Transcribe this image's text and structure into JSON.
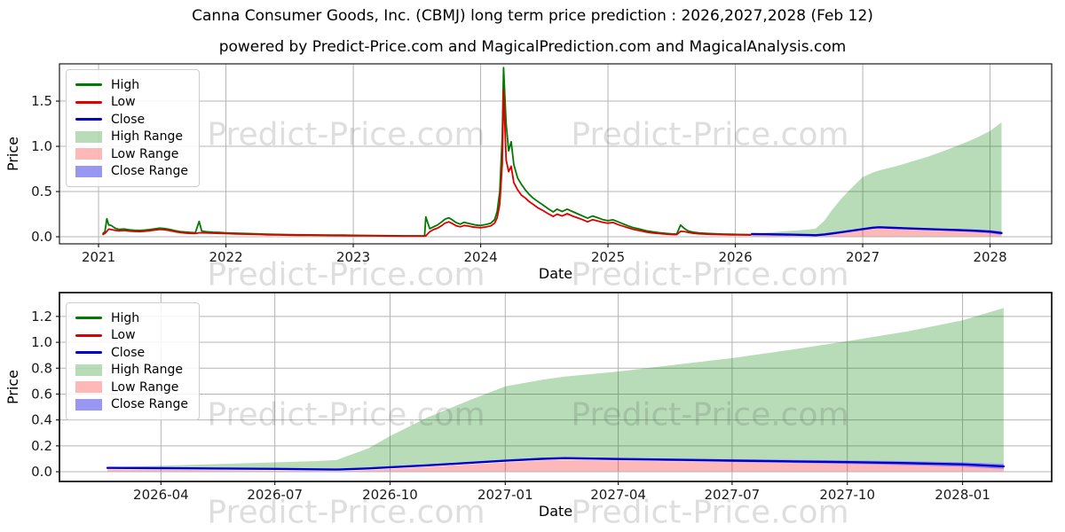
{
  "page": {
    "title": "Canna Consumer Goods, Inc. (CBMJ) long term price prediction : 2026,2027,2028 (Feb 12)",
    "subtitle": "powered by Predict-Price.com and MagicalPrediction.com and MagicalAnalysis.com"
  },
  "watermark": {
    "text": "Predict-Price.com"
  },
  "colors": {
    "high": "#007a00",
    "low": "#dd0000",
    "close": "#0000cd",
    "high_range": "rgba(0,128,0,0.28)",
    "low_range": "rgba(255,0,0,0.28)",
    "close_range": "rgba(50,50,230,0.5)",
    "grid": "#b4b4b4",
    "spine": "#1a1a1a",
    "tick_text": "#1a1a1a"
  },
  "chart_data": {
    "type": "line",
    "title": "Canna Consumer Goods, Inc. (CBMJ) long term price prediction : 2026,2027,2028 (Feb 12)",
    "legend_position": "upper left",
    "grid": true,
    "legend": [
      {
        "label": "High",
        "type": "line",
        "color": "high"
      },
      {
        "label": "Low",
        "type": "line",
        "color": "low"
      },
      {
        "label": "Close",
        "type": "line",
        "color": "close"
      },
      {
        "label": "High Range",
        "type": "patch",
        "color": "high_range"
      },
      {
        "label": "Low Range",
        "type": "patch",
        "color": "low_range"
      },
      {
        "label": "Close Range",
        "type": "patch",
        "color": "close_range"
      }
    ],
    "historical": {
      "columns": [
        "year",
        "high",
        "low"
      ],
      "points": [
        [
          2021.035,
          0.038,
          0.026
        ],
        [
          2021.05,
          0.055,
          0.038
        ],
        [
          2021.065,
          0.2,
          0.06
        ],
        [
          2021.08,
          0.13,
          0.085
        ],
        [
          2021.1,
          0.125,
          0.08
        ],
        [
          2021.13,
          0.095,
          0.072
        ],
        [
          2021.16,
          0.082,
          0.065
        ],
        [
          2021.2,
          0.086,
          0.07
        ],
        [
          2021.24,
          0.078,
          0.063
        ],
        [
          2021.28,
          0.072,
          0.059
        ],
        [
          2021.32,
          0.07,
          0.057
        ],
        [
          2021.36,
          0.074,
          0.061
        ],
        [
          2021.4,
          0.08,
          0.067
        ],
        [
          2021.44,
          0.088,
          0.074
        ],
        [
          2021.48,
          0.096,
          0.082
        ],
        [
          2021.52,
          0.091,
          0.078
        ],
        [
          2021.56,
          0.081,
          0.068
        ],
        [
          2021.6,
          0.068,
          0.056
        ],
        [
          2021.64,
          0.058,
          0.047
        ],
        [
          2021.68,
          0.052,
          0.042
        ],
        [
          2021.72,
          0.048,
          0.038
        ],
        [
          2021.76,
          0.045,
          0.036
        ],
        [
          2021.79,
          0.17,
          0.045
        ],
        [
          2021.81,
          0.062,
          0.044
        ],
        [
          2021.85,
          0.055,
          0.043
        ],
        [
          2021.9,
          0.05,
          0.04
        ],
        [
          2021.95,
          0.047,
          0.038
        ],
        [
          2022.0,
          0.044,
          0.036
        ],
        [
          2022.08,
          0.04,
          0.032
        ],
        [
          2022.17,
          0.036,
          0.029
        ],
        [
          2022.25,
          0.032,
          0.026
        ],
        [
          2022.33,
          0.028,
          0.022
        ],
        [
          2022.42,
          0.026,
          0.02
        ],
        [
          2022.5,
          0.024,
          0.018
        ],
        [
          2022.58,
          0.022,
          0.017
        ],
        [
          2022.67,
          0.021,
          0.016
        ],
        [
          2022.75,
          0.02,
          0.015
        ],
        [
          2022.83,
          0.019,
          0.014
        ],
        [
          2022.92,
          0.018,
          0.013
        ],
        [
          2023.0,
          0.016,
          0.012
        ],
        [
          2023.08,
          0.015,
          0.011
        ],
        [
          2023.17,
          0.014,
          0.01
        ],
        [
          2023.25,
          0.012,
          0.009
        ],
        [
          2023.33,
          0.011,
          0.008
        ],
        [
          2023.42,
          0.01,
          0.007
        ],
        [
          2023.5,
          0.01,
          0.007
        ],
        [
          2023.56,
          0.01,
          0.007
        ],
        [
          2023.57,
          0.22,
          0.01
        ],
        [
          2023.6,
          0.09,
          0.055
        ],
        [
          2023.63,
          0.11,
          0.08
        ],
        [
          2023.66,
          0.13,
          0.095
        ],
        [
          2023.69,
          0.16,
          0.12
        ],
        [
          2023.72,
          0.195,
          0.15
        ],
        [
          2023.75,
          0.21,
          0.165
        ],
        [
          2023.78,
          0.185,
          0.145
        ],
        [
          2023.81,
          0.155,
          0.12
        ],
        [
          2023.84,
          0.14,
          0.11
        ],
        [
          2023.87,
          0.16,
          0.125
        ],
        [
          2023.9,
          0.15,
          0.12
        ],
        [
          2023.93,
          0.14,
          0.11
        ],
        [
          2023.96,
          0.13,
          0.105
        ],
        [
          2024.0,
          0.125,
          0.1
        ],
        [
          2024.04,
          0.135,
          0.108
        ],
        [
          2024.08,
          0.15,
          0.12
        ],
        [
          2024.11,
          0.19,
          0.15
        ],
        [
          2024.13,
          0.28,
          0.21
        ],
        [
          2024.15,
          0.5,
          0.36
        ],
        [
          2024.17,
          1.1,
          0.8
        ],
        [
          2024.18,
          1.87,
          1.62
        ],
        [
          2024.2,
          1.25,
          0.85
        ],
        [
          2024.22,
          0.95,
          0.72
        ],
        [
          2024.24,
          1.05,
          0.78
        ],
        [
          2024.26,
          0.8,
          0.6
        ],
        [
          2024.29,
          0.65,
          0.52
        ],
        [
          2024.32,
          0.58,
          0.46
        ],
        [
          2024.35,
          0.52,
          0.43
        ],
        [
          2024.38,
          0.47,
          0.39
        ],
        [
          2024.41,
          0.43,
          0.36
        ],
        [
          2024.45,
          0.39,
          0.32
        ],
        [
          2024.49,
          0.35,
          0.29
        ],
        [
          2024.53,
          0.31,
          0.255
        ],
        [
          2024.57,
          0.275,
          0.225
        ],
        [
          2024.6,
          0.305,
          0.25
        ],
        [
          2024.64,
          0.28,
          0.23
        ],
        [
          2024.68,
          0.305,
          0.255
        ],
        [
          2024.72,
          0.28,
          0.23
        ],
        [
          2024.76,
          0.255,
          0.21
        ],
        [
          2024.8,
          0.23,
          0.19
        ],
        [
          2024.84,
          0.205,
          0.165
        ],
        [
          2024.88,
          0.23,
          0.19
        ],
        [
          2024.92,
          0.21,
          0.175
        ],
        [
          2024.96,
          0.19,
          0.16
        ],
        [
          2025.0,
          0.178,
          0.15
        ],
        [
          2025.04,
          0.188,
          0.158
        ],
        [
          2025.08,
          0.165,
          0.135
        ],
        [
          2025.12,
          0.142,
          0.116
        ],
        [
          2025.16,
          0.12,
          0.098
        ],
        [
          2025.2,
          0.1,
          0.082
        ],
        [
          2025.25,
          0.085,
          0.068
        ],
        [
          2025.3,
          0.066,
          0.052
        ],
        [
          2025.35,
          0.055,
          0.043
        ],
        [
          2025.4,
          0.046,
          0.036
        ],
        [
          2025.45,
          0.038,
          0.03
        ],
        [
          2025.5,
          0.032,
          0.025
        ],
        [
          2025.54,
          0.03,
          0.024
        ],
        [
          2025.57,
          0.13,
          0.06
        ],
        [
          2025.6,
          0.092,
          0.058
        ],
        [
          2025.63,
          0.064,
          0.048
        ],
        [
          2025.67,
          0.05,
          0.039
        ],
        [
          2025.72,
          0.042,
          0.033
        ],
        [
          2025.78,
          0.037,
          0.029
        ],
        [
          2025.84,
          0.033,
          0.026
        ],
        [
          2025.9,
          0.03,
          0.024
        ],
        [
          2025.96,
          0.028,
          0.022
        ],
        [
          2026.02,
          0.026,
          0.021
        ],
        [
          2026.08,
          0.025,
          0.02
        ],
        [
          2026.12,
          0.024,
          0.019
        ]
      ]
    },
    "prediction": {
      "columns": [
        "year",
        "close",
        "close_band_halfwidth",
        "high_range_upper",
        "low_range_upper"
      ],
      "low_range_lower": 0.004,
      "points": [
        [
          2026.13,
          0.03,
          0.002,
          0.033,
          0.018
        ],
        [
          2026.25,
          0.028,
          0.002,
          0.046,
          0.016
        ],
        [
          2026.38,
          0.025,
          0.003,
          0.06,
          0.013
        ],
        [
          2026.5,
          0.022,
          0.003,
          0.073,
          0.01
        ],
        [
          2026.58,
          0.019,
          0.003,
          0.082,
          0.007
        ],
        [
          2026.63,
          0.017,
          0.004,
          0.09,
          0.005
        ],
        [
          2026.7,
          0.026,
          0.004,
          0.18,
          0.014
        ],
        [
          2026.75,
          0.035,
          0.005,
          0.28,
          0.023
        ],
        [
          2026.83,
          0.05,
          0.005,
          0.42,
          0.038
        ],
        [
          2026.92,
          0.068,
          0.006,
          0.55,
          0.056
        ],
        [
          2027.0,
          0.085,
          0.006,
          0.66,
          0.073
        ],
        [
          2027.08,
          0.1,
          0.007,
          0.71,
          0.088
        ],
        [
          2027.13,
          0.105,
          0.008,
          0.735,
          0.093
        ],
        [
          2027.25,
          0.098,
          0.009,
          0.775,
          0.086
        ],
        [
          2027.38,
          0.092,
          0.01,
          0.83,
          0.08
        ],
        [
          2027.5,
          0.086,
          0.011,
          0.88,
          0.074
        ],
        [
          2027.63,
          0.08,
          0.012,
          0.945,
          0.068
        ],
        [
          2027.75,
          0.074,
          0.013,
          1.01,
          0.062
        ],
        [
          2027.88,
          0.067,
          0.015,
          1.085,
          0.055
        ],
        [
          2028.0,
          0.057,
          0.017,
          1.17,
          0.045
        ],
        [
          2028.09,
          0.042,
          0.02,
          1.265,
          0.03
        ]
      ]
    },
    "charts": [
      {
        "name": "overview",
        "xlabel": "Date",
        "ylabel": "Price",
        "xlim": [
          2020.693,
          2028.484
        ],
        "ylim": [
          -0.078,
          1.912
        ],
        "show_historical": true,
        "xticks": [
          {
            "v": 2021,
            "label": "2021"
          },
          {
            "v": 2022,
            "label": "2022"
          },
          {
            "v": 2023,
            "label": "2023"
          },
          {
            "v": 2024,
            "label": "2024"
          },
          {
            "v": 2025,
            "label": "2025"
          },
          {
            "v": 2026,
            "label": "2026"
          },
          {
            "v": 2027,
            "label": "2027"
          },
          {
            "v": 2028,
            "label": "2028"
          }
        ],
        "yticks": [
          {
            "v": 0.0,
            "label": "0.0"
          },
          {
            "v": 0.5,
            "label": "0.5"
          },
          {
            "v": 1.0,
            "label": "1.0"
          },
          {
            "v": 1.5,
            "label": "1.5"
          }
        ]
      },
      {
        "name": "forecast-detail",
        "xlabel": "Date",
        "ylabel": "Price",
        "xlim": [
          2026.025,
          2028.195
        ],
        "ylim": [
          -0.075,
          1.384
        ],
        "show_historical": false,
        "xticks": [
          {
            "v": 2026.247,
            "label": "2026-04"
          },
          {
            "v": 2026.496,
            "label": "2026-07"
          },
          {
            "v": 2026.748,
            "label": "2026-10"
          },
          {
            "v": 2027.0,
            "label": "2027-01"
          },
          {
            "v": 2027.247,
            "label": "2027-04"
          },
          {
            "v": 2027.496,
            "label": "2027-07"
          },
          {
            "v": 2027.748,
            "label": "2027-10"
          },
          {
            "v": 2028.0,
            "label": "2028-01"
          }
        ],
        "yticks": [
          {
            "v": 0.0,
            "label": "0.0"
          },
          {
            "v": 0.2,
            "label": "0.2"
          },
          {
            "v": 0.4,
            "label": "0.4"
          },
          {
            "v": 0.6,
            "label": "0.6"
          },
          {
            "v": 0.8,
            "label": "0.8"
          },
          {
            "v": 1.0,
            "label": "1.0"
          },
          {
            "v": 1.2,
            "label": "1.2"
          }
        ]
      }
    ]
  }
}
